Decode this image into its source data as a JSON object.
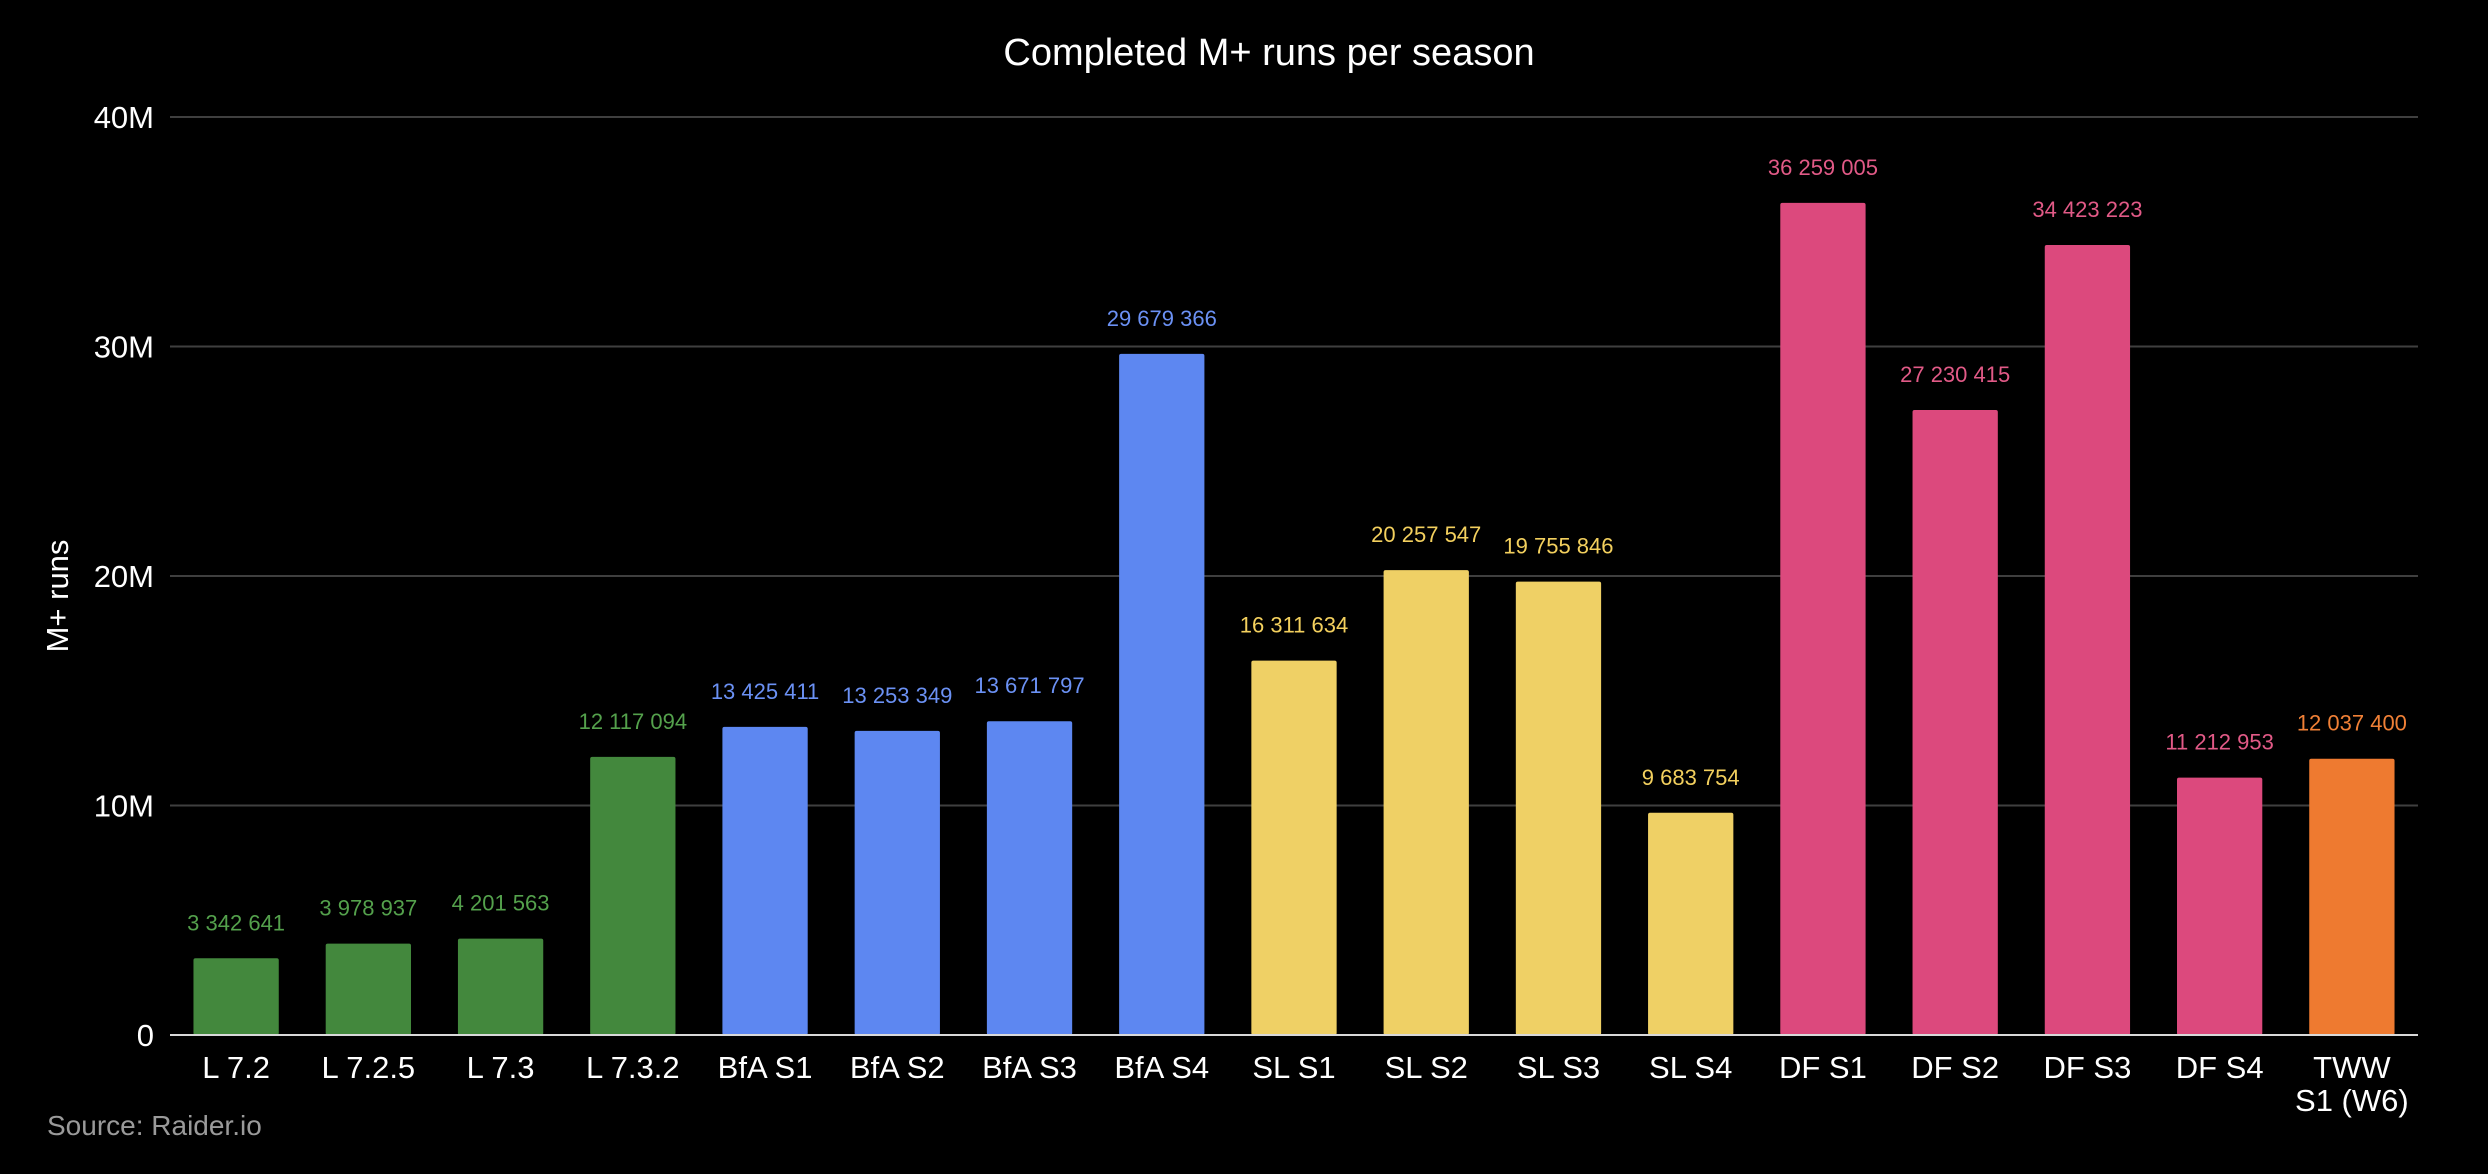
{
  "chart_data": {
    "type": "bar",
    "title": "Completed M+ runs per season",
    "xlabel": "",
    "ylabel": "M+ runs",
    "ylim": [
      0,
      40000000
    ],
    "yticks": [
      {
        "value": 0,
        "label": "0"
      },
      {
        "value": 10000000,
        "label": "10M"
      },
      {
        "value": 20000000,
        "label": "20M"
      },
      {
        "value": 30000000,
        "label": "30M"
      },
      {
        "value": 40000000,
        "label": "40M"
      }
    ],
    "grid": true,
    "bars": [
      {
        "category": [
          "L 7.2"
        ],
        "value": 3342641,
        "label": "3 342 641",
        "color": "#43883d",
        "label_color": "#54a14c"
      },
      {
        "category": [
          "L 7.2.5"
        ],
        "value": 3978937,
        "label": "3 978 937",
        "color": "#43883d",
        "label_color": "#54a14c"
      },
      {
        "category": [
          "L 7.3"
        ],
        "value": 4201563,
        "label": "4 201 563",
        "color": "#43883d",
        "label_color": "#54a14c"
      },
      {
        "category": [
          "L 7.3.2"
        ],
        "value": 12117094,
        "label": "12 117 094",
        "color": "#43883d",
        "label_color": "#54a14c"
      },
      {
        "category": [
          "BfA S1"
        ],
        "value": 13425411,
        "label": "13 425 411",
        "color": "#5d87f1",
        "label_color": "#6b91f4"
      },
      {
        "category": [
          "BfA S2"
        ],
        "value": 13253349,
        "label": "13 253 349",
        "color": "#5d87f1",
        "label_color": "#6b91f4"
      },
      {
        "category": [
          "BfA S3"
        ],
        "value": 13671797,
        "label": "13 671 797",
        "color": "#5d87f1",
        "label_color": "#6b91f4"
      },
      {
        "category": [
          "BfA S4"
        ],
        "value": 29679366,
        "label": "29 679 366",
        "color": "#5d87f1",
        "label_color": "#6b91f4"
      },
      {
        "category": [
          "SL S1"
        ],
        "value": 16311634,
        "label": "16 311 634",
        "color": "#efd065",
        "label_color": "#f3d05e"
      },
      {
        "category": [
          "SL S2"
        ],
        "value": 20257547,
        "label": "20 257 547",
        "color": "#efd065",
        "label_color": "#f3d05e"
      },
      {
        "category": [
          "SL S3"
        ],
        "value": 19755846,
        "label": "19 755 846",
        "color": "#efd065",
        "label_color": "#f3d05e"
      },
      {
        "category": [
          "SL S4"
        ],
        "value": 9683754,
        "label": "9 683 754",
        "color": "#efd065",
        "label_color": "#f3d05e"
      },
      {
        "category": [
          "DF S1"
        ],
        "value": 36259005,
        "label": "36 259 005",
        "color": "#dc497d",
        "label_color": "#e25a87"
      },
      {
        "category": [
          "DF S2"
        ],
        "value": 27230415,
        "label": "27 230 415",
        "color": "#dc497d",
        "label_color": "#e25a87"
      },
      {
        "category": [
          "DF S3"
        ],
        "value": 34423223,
        "label": "34 423 223",
        "color": "#dc497d",
        "label_color": "#e25a87"
      },
      {
        "category": [
          "DF S4"
        ],
        "value": 11212953,
        "label": "11 212 953",
        "color": "#dc497d",
        "label_color": "#e25a87"
      },
      {
        "category": [
          "TWW",
          "S1 (W6)"
        ],
        "value": 12037400,
        "label": "12 037 400",
        "color": "#ee7a30",
        "label_color": "#f08036"
      }
    ]
  },
  "source": "Source: Raider.io"
}
